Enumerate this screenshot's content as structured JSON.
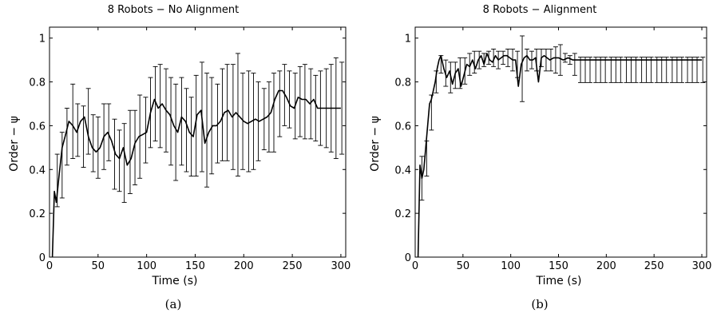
{
  "chart_data": [
    {
      "type": "line",
      "title": "8 Robots − No Alignment",
      "xlabel": "Time (s)",
      "ylabel": "Order − ψ",
      "xlim": [
        0,
        305
      ],
      "ylim": [
        0,
        1.05
      ],
      "xticks": [
        0,
        50,
        100,
        150,
        200,
        250,
        300
      ],
      "yticks": [
        0,
        0.2,
        0.4,
        0.6,
        0.8,
        1
      ],
      "ytick_labels": [
        "0",
        "0.2",
        "0.4",
        "0.6",
        "0.8",
        "1"
      ],
      "caption": "(a)",
      "grid": false,
      "series": [
        {
          "x": [
            3,
            5,
            7,
            10,
            13,
            16,
            20,
            24,
            28,
            32,
            36,
            40,
            44,
            48,
            52,
            56,
            60,
            64,
            68,
            72,
            76,
            80,
            84,
            88,
            92,
            96,
            100,
            104,
            108,
            112,
            116,
            120,
            124,
            128,
            132,
            136,
            140,
            144,
            148,
            152,
            156,
            160,
            164,
            168,
            172,
            176,
            180,
            184,
            188,
            192,
            196,
            200,
            204,
            208,
            212,
            216,
            220,
            224,
            228,
            232,
            236,
            240,
            244,
            248,
            252,
            256,
            260,
            264,
            268,
            272,
            276,
            280,
            285,
            290,
            295,
            300
          ],
          "y": [
            0,
            0.3,
            0.25,
            0.38,
            0.5,
            0.55,
            0.62,
            0.6,
            0.57,
            0.62,
            0.64,
            0.55,
            0.5,
            0.48,
            0.5,
            0.55,
            0.57,
            0.53,
            0.47,
            0.45,
            0.5,
            0.42,
            0.45,
            0.52,
            0.55,
            0.56,
            0.57,
            0.66,
            0.72,
            0.68,
            0.7,
            0.67,
            0.65,
            0.6,
            0.57,
            0.64,
            0.62,
            0.57,
            0.55,
            0.65,
            0.67,
            0.52,
            0.57,
            0.6,
            0.6,
            0.62,
            0.66,
            0.67,
            0.64,
            0.66,
            0.64,
            0.62,
            0.61,
            0.62,
            0.63,
            0.62,
            0.63,
            0.64,
            0.66,
            0.72,
            0.76,
            0.76,
            0.73,
            0.69,
            0.68,
            0.73,
            0.72,
            0.72,
            0.7,
            0.72,
            0.68,
            0.68,
            0.68,
            0.68,
            0.68,
            0.68
          ]
        }
      ],
      "errorbars": {
        "x": [
          8,
          13,
          18,
          24,
          29,
          35,
          40,
          45,
          50,
          56,
          61,
          67,
          72,
          77,
          83,
          88,
          93,
          99,
          104,
          109,
          114,
          120,
          125,
          130,
          136,
          141,
          146,
          151,
          157,
          162,
          167,
          173,
          178,
          183,
          189,
          194,
          199,
          205,
          210,
          215,
          221,
          226,
          231,
          237,
          242,
          247,
          253,
          258,
          263,
          269,
          274,
          279,
          285,
          290,
          295,
          301
        ],
        "y": [
          0.35,
          0.42,
          0.55,
          0.62,
          0.58,
          0.55,
          0.62,
          0.52,
          0.5,
          0.55,
          0.57,
          0.47,
          0.44,
          0.43,
          0.48,
          0.5,
          0.55,
          0.58,
          0.66,
          0.7,
          0.69,
          0.67,
          0.62,
          0.57,
          0.62,
          0.58,
          0.55,
          0.6,
          0.64,
          0.58,
          0.6,
          0.61,
          0.65,
          0.66,
          0.64,
          0.65,
          0.62,
          0.62,
          0.62,
          0.62,
          0.63,
          0.64,
          0.66,
          0.7,
          0.74,
          0.72,
          0.69,
          0.71,
          0.71,
          0.7,
          0.68,
          0.68,
          0.68,
          0.68,
          0.68,
          0.68
        ],
        "err": [
          0.12,
          0.15,
          0.13,
          0.17,
          0.12,
          0.14,
          0.15,
          0.13,
          0.14,
          0.15,
          0.13,
          0.16,
          0.14,
          0.18,
          0.19,
          0.17,
          0.19,
          0.15,
          0.16,
          0.17,
          0.19,
          0.19,
          0.2,
          0.22,
          0.2,
          0.19,
          0.18,
          0.23,
          0.25,
          0.26,
          0.22,
          0.18,
          0.21,
          0.22,
          0.24,
          0.28,
          0.22,
          0.23,
          0.22,
          0.18,
          0.14,
          0.16,
          0.18,
          0.15,
          0.14,
          0.13,
          0.15,
          0.16,
          0.17,
          0.16,
          0.15,
          0.17,
          0.18,
          0.2,
          0.23,
          0.21
        ]
      }
    },
    {
      "type": "line",
      "title": "8 Robots − Alignment",
      "xlabel": "Time (s)",
      "ylabel": "Order − ψ",
      "xlim": [
        0,
        305
      ],
      "ylim": [
        0,
        1.05
      ],
      "xticks": [
        0,
        50,
        100,
        150,
        200,
        250,
        300
      ],
      "yticks": [
        0,
        0.2,
        0.4,
        0.6,
        0.8,
        1
      ],
      "ytick_labels": [
        "0",
        "0.2",
        "0.4",
        "0.6",
        "0.8",
        "1"
      ],
      "caption": "(b)",
      "grid": false,
      "series": [
        {
          "x": [
            3,
            5,
            7,
            9,
            11,
            13,
            15,
            17,
            19,
            21,
            23,
            25,
            27,
            30,
            33,
            36,
            39,
            42,
            45,
            48,
            51,
            54,
            57,
            60,
            63,
            66,
            69,
            72,
            75,
            78,
            81,
            84,
            87,
            90,
            93,
            96,
            99,
            102,
            105,
            108,
            111,
            114,
            117,
            120,
            123,
            126,
            129,
            132,
            135,
            138,
            141,
            145,
            150,
            155,
            160,
            165,
            170,
            180,
            200,
            220,
            240,
            260,
            280,
            300
          ],
          "y": [
            0,
            0.42,
            0.36,
            0.4,
            0.5,
            0.6,
            0.7,
            0.72,
            0.76,
            0.8,
            0.86,
            0.9,
            0.92,
            0.86,
            0.82,
            0.85,
            0.79,
            0.84,
            0.86,
            0.78,
            0.83,
            0.88,
            0.87,
            0.9,
            0.86,
            0.9,
            0.92,
            0.88,
            0.93,
            0.9,
            0.89,
            0.92,
            0.9,
            0.91,
            0.92,
            0.92,
            0.91,
            0.9,
            0.9,
            0.78,
            0.88,
            0.91,
            0.92,
            0.9,
            0.9,
            0.91,
            0.8,
            0.91,
            0.92,
            0.91,
            0.9,
            0.91,
            0.91,
            0.9,
            0.91,
            0.9,
            0.9,
            0.9,
            0.9,
            0.9,
            0.9,
            0.9,
            0.9,
            0.9
          ]
        }
      ],
      "errorbars": {
        "x": [
          7,
          12,
          17,
          22,
          27,
          32,
          37,
          42,
          47,
          52,
          57,
          62,
          67,
          72,
          77,
          82,
          87,
          92,
          97,
          102,
          107,
          112,
          117,
          122,
          127,
          132,
          137,
          142,
          147,
          152,
          157,
          162,
          167,
          173,
          178,
          183,
          189,
          194,
          199,
          205,
          210,
          215,
          221,
          226,
          231,
          237,
          242,
          247,
          253,
          258,
          263,
          269,
          274,
          279,
          285,
          290,
          295,
          301
        ],
        "y": [
          0.36,
          0.45,
          0.66,
          0.8,
          0.88,
          0.84,
          0.82,
          0.83,
          0.84,
          0.85,
          0.88,
          0.89,
          0.9,
          0.9,
          0.91,
          0.91,
          0.9,
          0.91,
          0.91,
          0.9,
          0.88,
          0.86,
          0.9,
          0.9,
          0.9,
          0.91,
          0.9,
          0.9,
          0.9,
          0.9,
          0.91,
          0.9,
          0.88,
          0.855,
          0.855,
          0.855,
          0.855,
          0.855,
          0.855,
          0.855,
          0.855,
          0.855,
          0.855,
          0.855,
          0.855,
          0.855,
          0.855,
          0.855,
          0.855,
          0.855,
          0.855,
          0.855,
          0.855,
          0.855,
          0.855,
          0.855,
          0.855,
          0.855
        ],
        "err": [
          0.1,
          0.08,
          0.08,
          0.05,
          0.04,
          0.06,
          0.07,
          0.06,
          0.07,
          0.06,
          0.05,
          0.05,
          0.04,
          0.03,
          0.03,
          0.04,
          0.04,
          0.03,
          0.04,
          0.05,
          0.06,
          0.15,
          0.05,
          0.04,
          0.05,
          0.04,
          0.05,
          0.05,
          0.06,
          0.07,
          0.02,
          0.02,
          0.05,
          0.058,
          0.058,
          0.058,
          0.058,
          0.058,
          0.058,
          0.058,
          0.058,
          0.058,
          0.058,
          0.058,
          0.058,
          0.058,
          0.058,
          0.058,
          0.058,
          0.058,
          0.058,
          0.058,
          0.058,
          0.058,
          0.058,
          0.058,
          0.058,
          0.058
        ]
      }
    }
  ]
}
